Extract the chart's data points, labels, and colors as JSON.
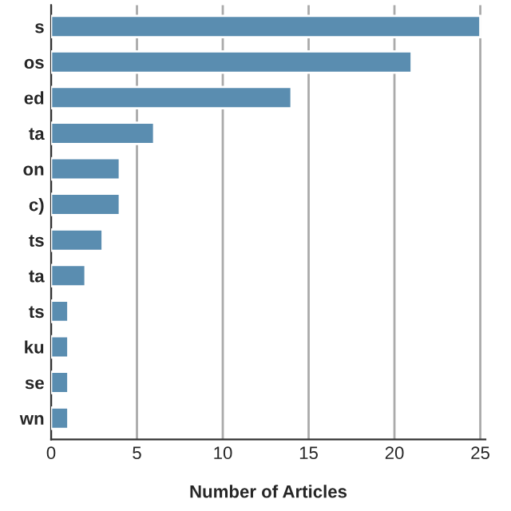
{
  "chart_data": {
    "type": "bar",
    "orientation": "horizontal",
    "categories": [
      "s",
      "os",
      "ed",
      "ta",
      "on",
      "c)",
      "ts",
      "ta",
      "ts",
      "ku",
      "se",
      "wn"
    ],
    "values": [
      25,
      21,
      14,
      6,
      4,
      4,
      3,
      2,
      1,
      1,
      1,
      1
    ],
    "color": "#5a8db0",
    "xlim": [
      0,
      25.3
    ],
    "xticks": [
      0,
      5,
      10,
      15,
      20,
      25
    ],
    "xlabel": "Number of Articles",
    "grid": "x"
  }
}
